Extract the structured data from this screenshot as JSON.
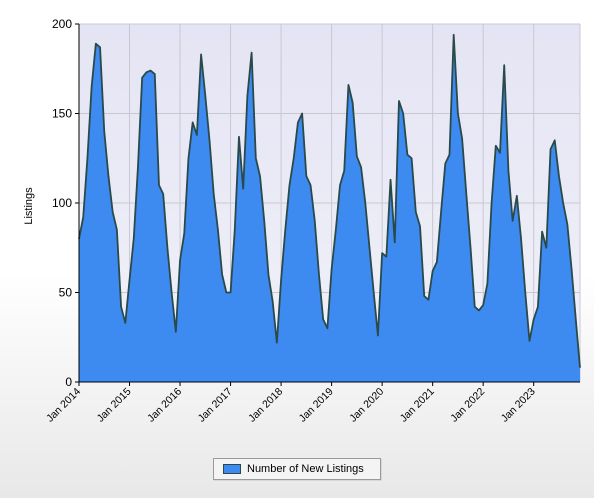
{
  "chart_data": {
    "type": "area",
    "title": "",
    "xlabel": "",
    "ylabel": "Listings",
    "ylim": [
      0,
      200
    ],
    "yticks": [
      0,
      50,
      100,
      150,
      200
    ],
    "xticks": [
      "Jan 2014",
      "Jan 2015",
      "Jan 2016",
      "Jan 2017",
      "Jan 2018",
      "Jan 2019",
      "Jan 2020",
      "Jan 2021",
      "Jan 2022",
      "Jan 2023"
    ],
    "start": "Jan 2014",
    "grid": true,
    "legend_position": "bottom",
    "series": [
      {
        "name": "Number of New Listings",
        "color": "#3d8af0",
        "line_color": "#2a4a4a",
        "values": [
          80,
          92,
          125,
          165,
          189,
          187,
          140,
          115,
          95,
          85,
          42,
          33,
          57,
          80,
          120,
          170,
          173,
          174,
          172,
          110,
          105,
          75,
          50,
          28,
          68,
          83,
          125,
          145,
          138,
          183,
          160,
          135,
          105,
          85,
          60,
          50,
          50,
          85,
          137,
          108,
          160,
          184,
          125,
          115,
          90,
          60,
          45,
          22,
          57,
          85,
          110,
          125,
          145,
          150,
          115,
          110,
          90,
          60,
          35,
          30,
          63,
          85,
          110,
          118,
          166,
          156,
          126,
          120,
          100,
          75,
          50,
          26,
          72,
          70,
          113,
          78,
          157,
          150,
          127,
          125,
          95,
          87,
          48,
          46,
          62,
          67,
          95,
          122,
          127,
          194,
          150,
          136,
          105,
          75,
          42,
          40,
          43,
          55,
          100,
          132,
          128,
          177,
          118,
          90,
          104,
          80,
          50,
          23,
          35,
          42,
          84,
          75,
          130,
          135,
          115,
          100,
          88,
          63,
          35,
          8
        ]
      }
    ]
  },
  "legend": {
    "label": "Number of New Listings"
  }
}
